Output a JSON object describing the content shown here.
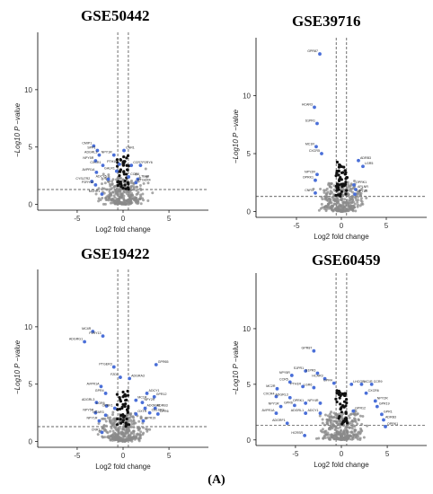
{
  "figure_caption": "(A)",
  "chart_data": [
    {
      "type": "scatter",
      "title": "GSE50442",
      "xlabel": "Log2 fold change",
      "ylabel": "−Log10 P −value",
      "x_ticks": [
        "-5",
        "0",
        "5"
      ],
      "y_ticks": [
        "0",
        "5",
        "10"
      ],
      "xlim": [
        -9.3,
        9.3
      ],
      "ylim": [
        -0.5,
        15
      ],
      "fc_threshold": [
        -0.58,
        0.58
      ],
      "p_threshold": 1.3,
      "colors": {
        "up": "#4a6fd8",
        "sig_small": "#111111",
        "ns": "#8a8a8a"
      },
      "labels": [
        {
          "x": -3.2,
          "y": 5.1,
          "text": "CMIP1"
        },
        {
          "x": -2.8,
          "y": 4.7,
          "text": "SPP1"
        },
        {
          "x": -2.6,
          "y": 4.3,
          "text": "ADGRL3"
        },
        {
          "x": -1.0,
          "y": 4.3,
          "text": "NPY1R"
        },
        {
          "x": 0.1,
          "y": 4.7,
          "text": "CNR1"
        },
        {
          "x": -3.0,
          "y": 3.8,
          "text": "NPY5R"
        },
        {
          "x": -2.2,
          "y": 3.4,
          "text": "CXCR1"
        },
        {
          "x": -0.4,
          "y": 3.5,
          "text": "PTH1R"
        },
        {
          "x": 0.9,
          "y": 3.4,
          "text": "CCR7"
        },
        {
          "x": 1.9,
          "y": 3.4,
          "text": "P2RY6"
        },
        {
          "x": -2.9,
          "y": 2.8,
          "text": "AVPR1A"
        },
        {
          "x": -0.7,
          "y": 2.9,
          "text": "GALR1"
        },
        {
          "x": -1.6,
          "y": 2.2,
          "text": "ADCY5"
        },
        {
          "x": 1.6,
          "y": 2.2,
          "text": "LTB4R"
        },
        {
          "x": 0.6,
          "y": 2.4,
          "text": "CCR8"
        },
        {
          "x": -3.4,
          "y": 2.0,
          "text": "CYSLTR2"
        },
        {
          "x": -3.0,
          "y": 1.7,
          "text": "P2RY12"
        },
        {
          "x": 1.4,
          "y": 1.9,
          "text": "PTGER4"
        },
        {
          "x": -2.3,
          "y": 0.9,
          "text": "MCHR1"
        }
      ]
    },
    {
      "type": "scatter",
      "title": "GSE39716",
      "xlabel": "Log2 fold change",
      "ylabel": "−Log10 P −value",
      "x_ticks": [
        "-5",
        "0",
        "5"
      ],
      "y_ticks": [
        "0",
        "5",
        "10"
      ],
      "xlim": [
        -9.5,
        9.5
      ],
      "ylim": [
        -0.5,
        15
      ],
      "fc_threshold": [
        -0.58,
        0.58
      ],
      "p_threshold": 1.3,
      "colors": {
        "up": "#4a6fd8",
        "sig_small": "#111111",
        "ns": "#8a8a8a"
      },
      "labels": [
        {
          "x": -2.4,
          "y": 13.6,
          "text": "GPR87"
        },
        {
          "x": -3.0,
          "y": 9.0,
          "text": "HCAR3"
        },
        {
          "x": -2.7,
          "y": 7.6,
          "text": "S1PR1"
        },
        {
          "x": -2.8,
          "y": 5.6,
          "text": "MC1R"
        },
        {
          "x": -2.2,
          "y": 5.0,
          "text": "CXCR5"
        },
        {
          "x": 1.9,
          "y": 4.4,
          "text": "ADRB3"
        },
        {
          "x": 2.4,
          "y": 3.9,
          "text": "LGR5"
        },
        {
          "x": -2.7,
          "y": 3.2,
          "text": "NPY2R"
        },
        {
          "x": -2.9,
          "y": 2.7,
          "text": "OPRK1"
        },
        {
          "x": 1.4,
          "y": 2.3,
          "text": "OPRK1"
        },
        {
          "x": 1.6,
          "y": 1.9,
          "text": "APLNR"
        },
        {
          "x": -2.9,
          "y": 1.6,
          "text": "CNR1"
        },
        {
          "x": 1.5,
          "y": 1.5,
          "text": "NPY1R"
        }
      ]
    },
    {
      "type": "scatter",
      "title": "GSE19422",
      "xlabel": "Log2 fold change",
      "ylabel": "−Log10 P −value",
      "x_ticks": [
        "-5",
        "0",
        "5"
      ],
      "y_ticks": [
        "0",
        "5",
        "10"
      ],
      "xlim": [
        -9.3,
        9.3
      ],
      "ylim": [
        -0.5,
        15
      ],
      "fc_threshold": [
        -0.58,
        0.58
      ],
      "p_threshold": 1.3,
      "colors": {
        "up": "#4a6fd8",
        "sig_small": "#111111",
        "ns": "#8a8a8a"
      },
      "labels": [
        {
          "x": -3.3,
          "y": 9.6,
          "text": "MC4R"
        },
        {
          "x": -2.2,
          "y": 9.2,
          "text": "P2RY13"
        },
        {
          "x": -4.2,
          "y": 8.7,
          "text": "ADGRG1"
        },
        {
          "x": -1.0,
          "y": 6.5,
          "text": "PTGER3"
        },
        {
          "x": -0.3,
          "y": 5.6,
          "text": "FZD1"
        },
        {
          "x": 0.7,
          "y": 5.5,
          "text": "ADGRA3"
        },
        {
          "x": 3.6,
          "y": 6.7,
          "text": "GPR65"
        },
        {
          "x": -2.4,
          "y": 4.8,
          "text": "AVPR1A"
        },
        {
          "x": -1.9,
          "y": 4.2,
          "text": "GPR4"
        },
        {
          "x": 2.6,
          "y": 4.2,
          "text": "ADCY1"
        },
        {
          "x": 3.4,
          "y": 3.9,
          "text": "GPR12"
        },
        {
          "x": 1.4,
          "y": 3.6,
          "text": "MC1R"
        },
        {
          "x": 2.1,
          "y": 3.4,
          "text": "NPY2R"
        },
        {
          "x": -2.9,
          "y": 3.4,
          "text": "ADGRL3"
        },
        {
          "x": -1.8,
          "y": 3.1,
          "text": "LGR6"
        },
        {
          "x": -0.9,
          "y": 2.9,
          "text": "OPRK1"
        },
        {
          "x": 2.4,
          "y": 2.9,
          "text": "ADORA2"
        },
        {
          "x": 3.5,
          "y": 2.9,
          "text": "ADRB3"
        },
        {
          "x": -3.0,
          "y": 2.5,
          "text": "NPY5R"
        },
        {
          "x": -1.9,
          "y": 2.3,
          "text": "HCAR3"
        },
        {
          "x": 1.4,
          "y": 2.4,
          "text": "OXTR"
        },
        {
          "x": 2.9,
          "y": 2.5,
          "text": "CELSR3"
        },
        {
          "x": 3.8,
          "y": 2.4,
          "text": "GPR6"
        },
        {
          "x": -2.6,
          "y": 1.8,
          "text": "NPY1R"
        },
        {
          "x": 2.2,
          "y": 1.8,
          "text": "GPR19"
        },
        {
          "x": -2.3,
          "y": 0.8,
          "text": "CNR1"
        }
      ]
    },
    {
      "type": "scatter",
      "title": "GSE60459",
      "xlabel": "Log2 fold change",
      "ylabel": "−Log10 P −value",
      "x_ticks": [
        "-5",
        "0",
        "5"
      ],
      "y_ticks": [
        "0",
        "5",
        "10"
      ],
      "xlim": [
        -9.3,
        9.3
      ],
      "ylim": [
        -0.5,
        15
      ],
      "fc_threshold": [
        -0.58,
        0.58
      ],
      "p_threshold": 1.3,
      "colors": {
        "up": "#4a6fd8",
        "sig_small": "#111111",
        "ns": "#8a8a8a"
      },
      "labels": [
        {
          "x": -3.0,
          "y": 8.0,
          "text": "GPR87"
        },
        {
          "x": -3.9,
          "y": 6.2,
          "text": "S1PR1"
        },
        {
          "x": -2.6,
          "y": 6.0,
          "text": "S1PR3"
        },
        {
          "x": -5.4,
          "y": 5.8,
          "text": "NPY5R"
        },
        {
          "x": -5.6,
          "y": 5.2,
          "text": "CCR5"
        },
        {
          "x": -1.8,
          "y": 5.5,
          "text": "HCAR3"
        },
        {
          "x": -0.8,
          "y": 5.1,
          "text": "GPR4"
        },
        {
          "x": -4.2,
          "y": 4.8,
          "text": "PTH1R"
        },
        {
          "x": -3.0,
          "y": 4.7,
          "text": "LGR6"
        },
        {
          "x": 1.1,
          "y": 5.0,
          "text": "LHCGR"
        },
        {
          "x": 2.2,
          "y": 5.0,
          "text": "MC1R"
        },
        {
          "x": 3.3,
          "y": 5.0,
          "text": "CCR9"
        },
        {
          "x": -7.0,
          "y": 4.6,
          "text": "MC2R"
        },
        {
          "x": 2.7,
          "y": 4.2,
          "text": "CXCR6"
        },
        {
          "x": -7.1,
          "y": 3.9,
          "text": "CXCR4"
        },
        {
          "x": -5.6,
          "y": 3.8,
          "text": "ADGRL3"
        },
        {
          "x": 3.7,
          "y": 3.5,
          "text": "NPY2R"
        },
        {
          "x": -6.6,
          "y": 3.0,
          "text": "NPY1R"
        },
        {
          "x": -5.1,
          "y": 3.1,
          "text": "GPR6"
        },
        {
          "x": -3.9,
          "y": 3.3,
          "text": "OPRK1"
        },
        {
          "x": -2.3,
          "y": 3.3,
          "text": "NPY4R"
        },
        {
          "x": 3.9,
          "y": 3.0,
          "text": "GPR19"
        },
        {
          "x": -7.1,
          "y": 2.4,
          "text": "AVPR1A"
        },
        {
          "x": -3.9,
          "y": 2.4,
          "text": "ADGRL1"
        },
        {
          "x": -2.3,
          "y": 2.4,
          "text": "ADCY1"
        },
        {
          "x": 1.3,
          "y": 2.6,
          "text": "GPR12"
        },
        {
          "x": 4.4,
          "y": 2.3,
          "text": "GPR1"
        },
        {
          "x": 4.6,
          "y": 1.8,
          "text": "ADRB3"
        },
        {
          "x": -5.9,
          "y": 1.5,
          "text": "ADGRF1"
        },
        {
          "x": 4.8,
          "y": 1.2,
          "text": "OPRK1"
        },
        {
          "x": -4.0,
          "y": 0.4,
          "text": "HCRSR"
        }
      ]
    }
  ]
}
